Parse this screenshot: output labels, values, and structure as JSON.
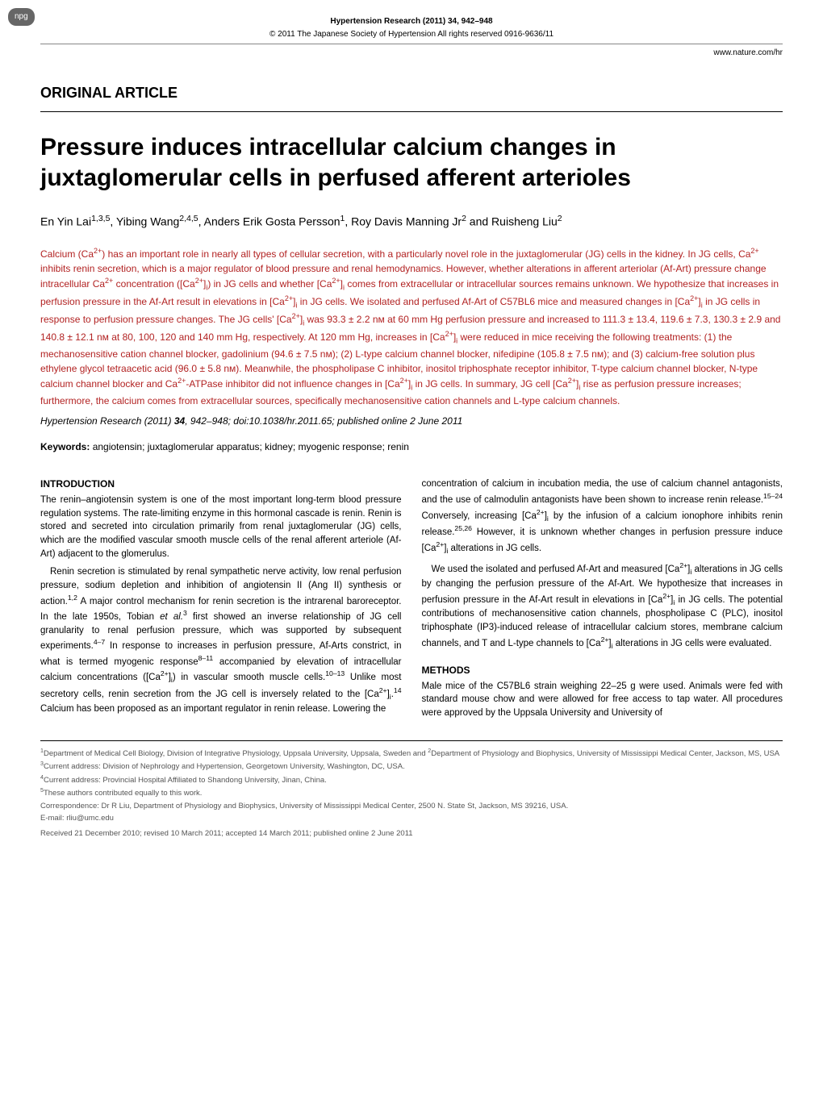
{
  "badge": "npg",
  "header": {
    "journal_line": "Hypertension Research (2011) 34, 942–948",
    "copyright": "© 2011 The Japanese Society of Hypertension  All rights reserved 0916-9636/11",
    "website": "www.nature.com/hr"
  },
  "article_type": "ORIGINAL ARTICLE",
  "title": "Pressure induces intracellular calcium changes in juxtaglomerular cells in perfused afferent arterioles",
  "authors_html": "En Yin Lai<sup>1,3,5</sup>, Yibing Wang<sup>2,4,5</sup>, Anders Erik Gosta Persson<sup>1</sup>, Roy Davis Manning Jr<sup>2</sup> and Ruisheng Liu<sup>2</sup>",
  "abstract_html": "Calcium (Ca<sup>2+</sup>) has an important role in nearly all types of cellular secretion, with a particularly novel role in the juxtaglomerular (JG) cells in the kidney. In JG cells, Ca<sup>2+</sup> inhibits renin secretion, which is a major regulator of blood pressure and renal hemodynamics. However, whether alterations in afferent arteriolar (Af-Art) pressure change intracellular Ca<sup>2+</sup> concentration ([Ca<sup>2+</sup>]<sub>i</sub>) in JG cells and whether [Ca<sup>2+</sup>]<sub>i</sub> comes from extracellular or intracellular sources remains unknown. We hypothesize that increases in perfusion pressure in the Af-Art result in elevations in [Ca<sup>2+</sup>]<sub>i</sub> in JG cells. We isolated and perfused Af-Art of C57BL6 mice and measured changes in [Ca<sup>2+</sup>]<sub>i</sub> in JG cells in response to perfusion pressure changes. The JG cells' [Ca<sup>2+</sup>]<sub>i</sub> was 93.3 ± 2.2 nᴍ at 60 mm Hg perfusion pressure and increased to 111.3 ± 13.4, 119.6 ± 7.3, 130.3 ± 2.9 and 140.8 ± 12.1 nᴍ at 80, 100, 120 and 140 mm Hg, respectively. At 120 mm Hg, increases in [Ca<sup>2+</sup>]<sub>i</sub> were reduced in mice receiving the following treatments: (1) the mechanosensitive cation channel blocker, gadolinium (94.6 ± 7.5 nᴍ); (2) L-type calcium channel blocker, nifedipine (105.8 ± 7.5 nᴍ); and (3) calcium-free solution plus ethylene glycol tetraacetic acid (96.0 ± 5.8 nᴍ). Meanwhile, the phospholipase C inhibitor, inositol triphosphate receptor inhibitor, T-type calcium channel blocker, N-type calcium channel blocker and Ca<sup>2+</sup>-ATPase inhibitor did not influence changes in [Ca<sup>2+</sup>]<sub>i</sub> in JG cells. In summary, JG cell [Ca<sup>2+</sup>]<sub>i</sub> rise as perfusion pressure increases; furthermore, the calcium comes from extracellular sources, specifically mechanosensitive cation channels and L-type calcium channels.",
  "citation_html": "<span class=\"journal-ref\">Hypertension Research</span> (2011) <b>34</b>, 942–948; doi:10.1038/hr.2011.65; published online 2 June 2011",
  "keywords_label": "Keywords:",
  "keywords_text": " angiotensin; juxtaglomerular apparatus; kidney; myogenic response; renin",
  "introduction": {
    "heading": "INTRODUCTION",
    "col1_html": "<p>The renin–angiotensin system is one of the most important long-term blood pressure regulation systems. The rate-limiting enzyme in this hormonal cascade is renin. Renin is stored and secreted into circulation primarily from renal juxtaglomerular (JG) cells, which are the modified vascular smooth muscle cells of the renal afferent arteriole (Af-Art) adjacent to the glomerulus.</p><p class=\"para-gap\">Renin secretion is stimulated by renal sympathetic nerve activity, low renal perfusion pressure, sodium depletion and inhibition of angiotensin II (Ang II) synthesis or action.<sup>1,2</sup> A major control mechanism for renin secretion is the intrarenal baroreceptor. In the late 1950s, Tobian <i>et al.</i><sup>3</sup> first showed an inverse relationship of JG cell granularity to renal perfusion pressure, which was supported by subsequent experiments.<sup>4–7</sup> In response to increases in perfusion pressure, Af-Arts constrict, in what is termed myogenic response<sup>8–11</sup> accompanied by elevation of intracellular calcium concentrations ([Ca<sup>2+</sup>]<sub>i</sub>) in vascular smooth muscle cells.<sup>10–13</sup> Unlike most secretory cells, renin secretion from the JG cell is inversely related to the [Ca<sup>2+</sup>]<sub>i</sub>.<sup>14</sup> Calcium has been proposed as an important regulator in renin release. Lowering the</p>",
    "col2_html": "<p>concentration of calcium in incubation media, the use of calcium channel antagonists, and the use of calmodulin antagonists have been shown to increase renin release.<sup>15–24</sup> Conversely, increasing [Ca<sup>2+</sup>]<sub>i</sub> by the infusion of a calcium ionophore inhibits renin release.<sup>25,26</sup> However, it is unknown whether changes in perfusion pressure induce [Ca<sup>2+</sup>]<sub>i</sub> alterations in JG cells.</p><p class=\"para-gap\">We used the isolated and perfused Af-Art and measured [Ca<sup>2+</sup>]<sub>i</sub> alterations in JG cells by changing the perfusion pressure of the Af-Art. We hypothesize that increases in perfusion pressure in the Af-Art result in elevations in [Ca<sup>2+</sup>]<sub>i</sub> in JG cells. The potential contributions of mechanosensitive cation channels, phospholipase C (PLC), inositol triphosphate (IP3)-induced release of intracellular calcium stores, membrane calcium channels, and T and L-type channels to [Ca<sup>2+</sup>]<sub>i</sub> alterations in JG cells were evaluated.</p>"
  },
  "methods": {
    "heading": "METHODS",
    "col2_html": "<p>Male mice of the C57BL6 strain weighing 22–25 g were used. Animals were fed with standard mouse chow and were allowed for free access to tap water. All procedures were approved by the Uppsala University and University of</p>"
  },
  "footer": {
    "aff1_html": "<sup>1</sup>Department of Medical Cell Biology, Division of Integrative Physiology, Uppsala University, Uppsala, Sweden and <sup>2</sup>Department of Physiology and Biophysics, University of Mississippi Medical Center, Jackson, MS, USA",
    "aff3_html": "<sup>3</sup>Current address: Division of Nephrology and Hypertension, Georgetown University, Washington, DC, USA.",
    "aff4_html": "<sup>4</sup>Current address: Provincial Hospital Affiliated to Shandong University, Jinan, China.",
    "aff5_html": "<sup>5</sup>These authors contributed equally to this work.",
    "correspondence": "Correspondence: Dr R Liu, Department of Physiology and Biophysics, University of Mississippi Medical Center, 2500 N. State St, Jackson, MS 39216, USA.",
    "email": "E-mail: rliu@umc.edu",
    "received": "Received 21 December 2010; revised 10 March 2011; accepted 14 March 2011; published online 2 June 2011"
  },
  "colors": {
    "abstract_color": "#b22222",
    "footer_color": "#555555",
    "text_color": "#000000",
    "background": "#ffffff"
  }
}
